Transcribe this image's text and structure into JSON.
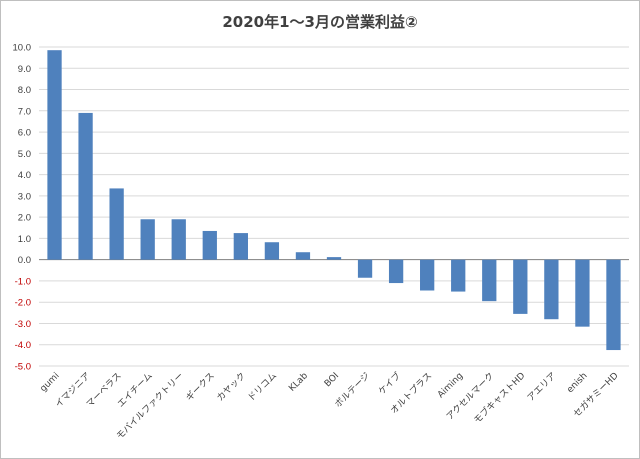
{
  "chart_data": {
    "type": "bar",
    "title": "2020年1～3月の営業利益②",
    "xlabel": "",
    "ylabel": "",
    "categories": [
      "gumi",
      "イマジニア",
      "マーベラス",
      "エイチーム",
      "モバイルファクトリー",
      "ギークス",
      "カヤック",
      "ドリコム",
      "KLab",
      "BOI",
      "ボルテージ",
      "ケイブ",
      "オルトプラス",
      "Aiming",
      "アクセルマーク",
      "モブキャストHD",
      "アエリア",
      "enish",
      "セガサミーHD"
    ],
    "values": [
      9.85,
      6.9,
      3.35,
      1.9,
      1.9,
      1.35,
      1.25,
      0.82,
      0.35,
      0.12,
      -0.85,
      -1.1,
      -1.45,
      -1.5,
      -1.95,
      -2.55,
      -2.8,
      -3.15,
      -4.25
    ],
    "ylim": [
      -5,
      10
    ],
    "yticks": [
      "10.0",
      "9.0",
      "8.0",
      "7.0",
      "6.0",
      "5.0",
      "4.0",
      "3.0",
      "2.0",
      "1.0",
      "0.0",
      "-1.0",
      "-2.0",
      "-3.0",
      "-4.0",
      "-5.0"
    ],
    "grid": true,
    "legend": "none",
    "colors": {
      "bar": "#4f81bd",
      "negative_tick": "#c00000",
      "grid": "#d9d9d9"
    }
  }
}
